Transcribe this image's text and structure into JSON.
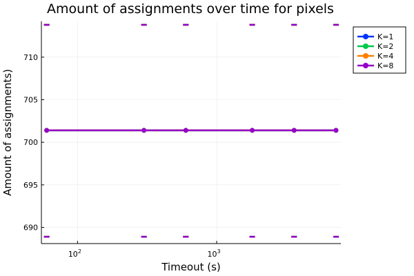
{
  "chart_data": {
    "type": "line",
    "title": "Amount of assignments over time for pixels",
    "xlabel": "Timeout (s)",
    "ylabel": "Amount of assignments)",
    "xscale": "log",
    "xlim": [
      55,
      7800
    ],
    "ylim": [
      688.1,
      714.2
    ],
    "x_ticks": [
      {
        "value": 100,
        "base": "10",
        "exp": "2"
      },
      {
        "value": 1000,
        "base": "10",
        "exp": "3"
      }
    ],
    "y_ticks": [
      690,
      695,
      700,
      705,
      710
    ],
    "grid": true,
    "legend_position": "top-right",
    "x": [
      60,
      300,
      600,
      1800,
      3600,
      7200
    ],
    "series": [
      {
        "name": "K=1",
        "color": "#0033ff",
        "values": [
          701.4,
          701.4,
          701.4,
          701.4,
          701.4,
          701.4
        ],
        "err_low": [
          688.9,
          688.9,
          688.9,
          688.9,
          688.9,
          688.9
        ],
        "err_high": [
          713.8,
          713.8,
          713.8,
          713.8,
          713.8,
          713.8
        ]
      },
      {
        "name": "K=2",
        "color": "#00c84b",
        "values": [
          701.4,
          701.4,
          701.4,
          701.4,
          701.4,
          701.4
        ],
        "err_low": [
          688.9,
          688.9,
          688.9,
          688.9,
          688.9,
          688.9
        ],
        "err_high": [
          713.8,
          713.8,
          713.8,
          713.8,
          713.8,
          713.8
        ]
      },
      {
        "name": "K=4",
        "color": "#ff7f00",
        "values": [
          701.4,
          701.4,
          701.4,
          701.4,
          701.4,
          701.4
        ],
        "err_low": [
          688.9,
          688.9,
          688.9,
          688.9,
          688.9,
          688.9
        ],
        "err_high": [
          713.8,
          713.8,
          713.8,
          713.8,
          713.8,
          713.8
        ]
      },
      {
        "name": "K=8",
        "color": "#9300c8",
        "values": [
          701.4,
          701.4,
          701.4,
          701.4,
          701.4,
          701.4
        ],
        "err_low": [
          688.9,
          688.9,
          688.9,
          688.9,
          688.9,
          688.9
        ],
        "err_high": [
          713.8,
          713.8,
          713.8,
          713.8,
          713.8,
          713.8
        ]
      }
    ]
  }
}
